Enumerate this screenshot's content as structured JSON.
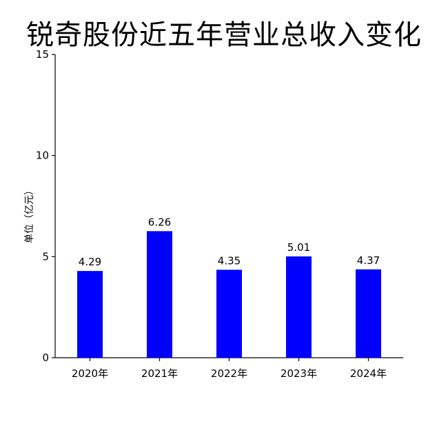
{
  "chart_data": {
    "type": "bar",
    "title": "锐奇股份近五年营业总收入变化",
    "xlabel": "",
    "ylabel": "单位（亿元）",
    "categories": [
      "2020年",
      "2021年",
      "2022年",
      "2023年",
      "2024年"
    ],
    "values": [
      4.29,
      6.26,
      4.35,
      5.01,
      4.37
    ],
    "data_labels": [
      "4.29",
      "6.26",
      "4.35",
      "5.01",
      "4.37"
    ],
    "ylim": [
      0,
      15
    ],
    "yticks": [
      "0",
      "5",
      "10",
      "15"
    ],
    "ytick_values": [
      0,
      5,
      10,
      15
    ],
    "grid": false,
    "legend": "none",
    "bar_color": "#0000ff"
  }
}
